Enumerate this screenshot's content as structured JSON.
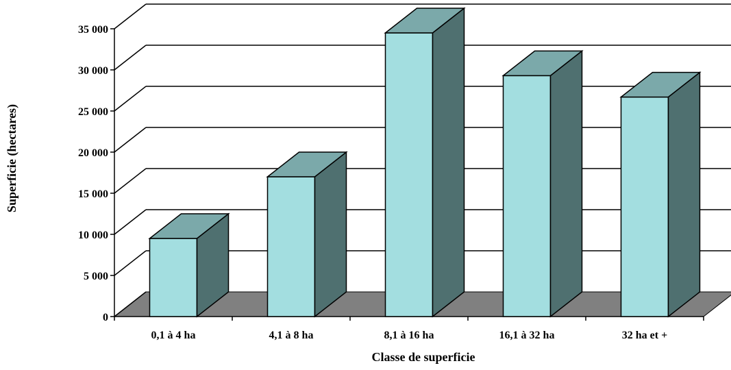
{
  "chart_data": {
    "type": "bar",
    "title": "",
    "xlabel": "Classe de superficie",
    "ylabel": "Superficie (hectares)",
    "categories": [
      "0,1 à 4 ha",
      "4,1 à 8 ha",
      "8,1 à 16 ha",
      "16,1 à 32 ha",
      "32 ha et +"
    ],
    "values": [
      9500,
      17000,
      34500,
      29300,
      26700
    ],
    "ylim": [
      0,
      35000
    ],
    "yticks": [
      0,
      5000,
      10000,
      15000,
      20000,
      25000,
      30000,
      35000
    ],
    "ytick_labels": [
      "0",
      "5 000",
      "10 000",
      "15 000",
      "20 000",
      "25 000",
      "30 000",
      "35 000"
    ],
    "grid": true,
    "style": "3d-column",
    "colors": {
      "bar_front": "#A3DEE0",
      "bar_top": "#7BA9AA",
      "bar_side": "#4F7070",
      "floor": "#808080",
      "gridline": "#000000"
    }
  }
}
